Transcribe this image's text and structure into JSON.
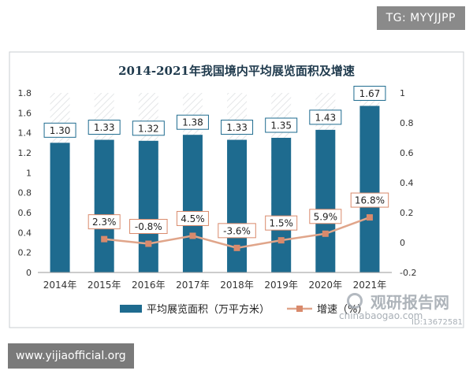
{
  "badges": {
    "top_right": "TG: MYYJJPP",
    "bottom_left": "www.yijiaofficial.org"
  },
  "watermark": {
    "icon": "magnifier-icon",
    "brand": "观研报告网",
    "domain": "chinabaogao.com",
    "id": "ID:13672581"
  },
  "colors": {
    "bar": "#1e6b8f",
    "line": "#e0a58a",
    "marker": "#d98a6c",
    "title": "#1f3a4d",
    "label_border": "#1e6b8f",
    "pct_border": "#d98a6c"
  },
  "chart_data": {
    "type": "bar",
    "title": "2014-2021年我国境内平均展览面积及增速",
    "categories": [
      "2014年",
      "2015年",
      "2016年",
      "2017年",
      "2018年",
      "2019年",
      "2020年",
      "2021年"
    ],
    "series": [
      {
        "name": "平均展览面积（万平方米）",
        "type": "bar",
        "axis": "left",
        "values": [
          1.3,
          1.33,
          1.32,
          1.38,
          1.33,
          1.35,
          1.43,
          1.67
        ],
        "labels": [
          "1.30",
          "1.33",
          "1.32",
          "1.38",
          "1.33",
          "1.35",
          "1.43",
          "1.67"
        ]
      },
      {
        "name": "增速（%）",
        "type": "line",
        "axis": "right",
        "values": [
          null,
          0.023,
          -0.008,
          0.045,
          -0.036,
          0.015,
          0.059,
          0.168
        ],
        "labels": [
          "",
          "2.3%",
          "-0.8%",
          "4.5%",
          "-3.6%",
          "1.5%",
          "5.9%",
          "16.8%"
        ]
      }
    ],
    "left_axis": {
      "min": 0,
      "max": 1.8,
      "ticks": [
        "0",
        "0.2",
        "0.4",
        "0.6",
        "0.8",
        "1",
        "1.2",
        "1.4",
        "1.6",
        "1.8"
      ]
    },
    "right_axis": {
      "min": -0.2,
      "max": 1.0,
      "ticks": [
        "-0.2",
        "0",
        "0.2",
        "0.4",
        "0.6",
        "0.8",
        "1"
      ]
    },
    "legend": "bottom",
    "grid": false
  }
}
